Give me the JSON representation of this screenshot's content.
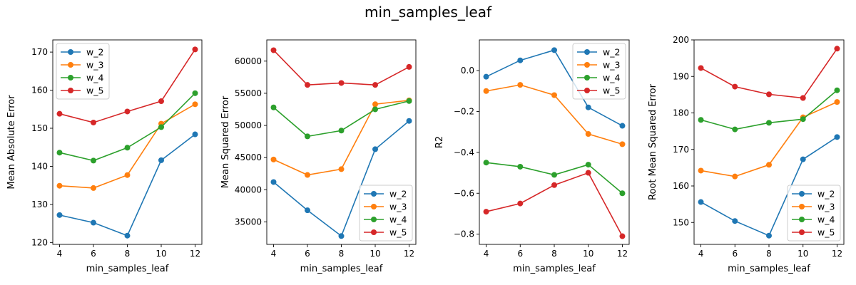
{
  "title": "min_samples_leaf",
  "colors": {
    "w_2": "#1f77b4",
    "w_3": "#ff7f0e",
    "w_4": "#2ca02c",
    "w_5": "#d62728"
  },
  "chart_data": [
    {
      "type": "line",
      "xlabel": "min_samples_leaf",
      "ylabel": "Mean Absolute Error",
      "x": [
        4,
        6,
        8,
        10,
        12
      ],
      "xlim": [
        3.6,
        12.4
      ],
      "ylim": [
        119.5,
        173.2
      ],
      "yticks": [
        120,
        130,
        140,
        150,
        160,
        170
      ],
      "ytick_labels": [
        "120",
        "130",
        "140",
        "150",
        "160",
        "170"
      ],
      "legend_loc": "upper-left",
      "series": [
        {
          "name": "w_2",
          "values": [
            127.2,
            125.2,
            121.8,
            141.6,
            148.4
          ]
        },
        {
          "name": "w_3",
          "values": [
            134.9,
            134.3,
            137.7,
            151.2,
            156.3
          ]
        },
        {
          "name": "w_4",
          "values": [
            143.6,
            141.5,
            144.9,
            150.3,
            159.2
          ]
        },
        {
          "name": "w_5",
          "values": [
            153.8,
            151.5,
            154.4,
            157.1,
            170.7
          ]
        }
      ]
    },
    {
      "type": "line",
      "xlabel": "min_samples_leaf",
      "ylabel": "Mean Squared Error",
      "x": [
        4,
        6,
        8,
        10,
        12
      ],
      "xlim": [
        3.6,
        12.4
      ],
      "ylim": [
        31500,
        63300
      ],
      "yticks": [
        35000,
        40000,
        45000,
        50000,
        55000,
        60000
      ],
      "ytick_labels": [
        "35000",
        "40000",
        "45000",
        "50000",
        "55000",
        "60000"
      ],
      "legend_loc": "lower-right",
      "series": [
        {
          "name": "w_2",
          "values": [
            41200,
            36800,
            32800,
            46300,
            50700
          ]
        },
        {
          "name": "w_3",
          "values": [
            44700,
            42300,
            43200,
            53300,
            53900
          ]
        },
        {
          "name": "w_4",
          "values": [
            52800,
            48300,
            49200,
            52500,
            53800
          ]
        },
        {
          "name": "w_5",
          "values": [
            61700,
            56300,
            56600,
            56300,
            59100
          ]
        }
      ]
    },
    {
      "type": "line",
      "xlabel": "min_samples_leaf",
      "ylabel": "R2",
      "x": [
        4,
        6,
        8,
        10,
        12
      ],
      "xlim": [
        3.6,
        12.4
      ],
      "ylim": [
        -0.85,
        0.15
      ],
      "yticks": [
        -0.8,
        -0.6,
        -0.4,
        -0.2,
        0.0
      ],
      "ytick_labels": [
        "−0.8",
        "−0.6",
        "−0.4",
        "−0.2",
        "0.0"
      ],
      "legend_loc": "upper-right",
      "series": [
        {
          "name": "w_2",
          "values": [
            -0.03,
            0.05,
            0.1,
            -0.18,
            -0.27
          ]
        },
        {
          "name": "w_3",
          "values": [
            -0.1,
            -0.07,
            -0.12,
            -0.31,
            -0.36
          ]
        },
        {
          "name": "w_4",
          "values": [
            -0.45,
            -0.47,
            -0.51,
            -0.46,
            -0.6
          ]
        },
        {
          "name": "w_5",
          "values": [
            -0.69,
            -0.65,
            -0.56,
            -0.5,
            -0.81
          ]
        }
      ]
    },
    {
      "type": "line",
      "xlabel": "min_samples_leaf",
      "ylabel": "Root Mean Squared Error",
      "x": [
        4,
        6,
        8,
        10,
        12
      ],
      "xlim": [
        3.6,
        12.4
      ],
      "ylim": [
        144,
        200
      ],
      "yticks": [
        150,
        160,
        170,
        180,
        190,
        200
      ],
      "ytick_labels": [
        "150",
        "160",
        "170",
        "180",
        "190",
        "200"
      ],
      "legend_loc": "lower-right",
      "series": [
        {
          "name": "w_2",
          "values": [
            155.6,
            150.4,
            146.4,
            167.3,
            173.4
          ]
        },
        {
          "name": "w_3",
          "values": [
            164.2,
            162.6,
            165.8,
            178.8,
            183.0
          ]
        },
        {
          "name": "w_4",
          "values": [
            178.1,
            175.5,
            177.3,
            178.3,
            186.2
          ]
        },
        {
          "name": "w_5",
          "values": [
            192.3,
            187.2,
            185.1,
            184.1,
            197.6
          ]
        }
      ]
    }
  ]
}
